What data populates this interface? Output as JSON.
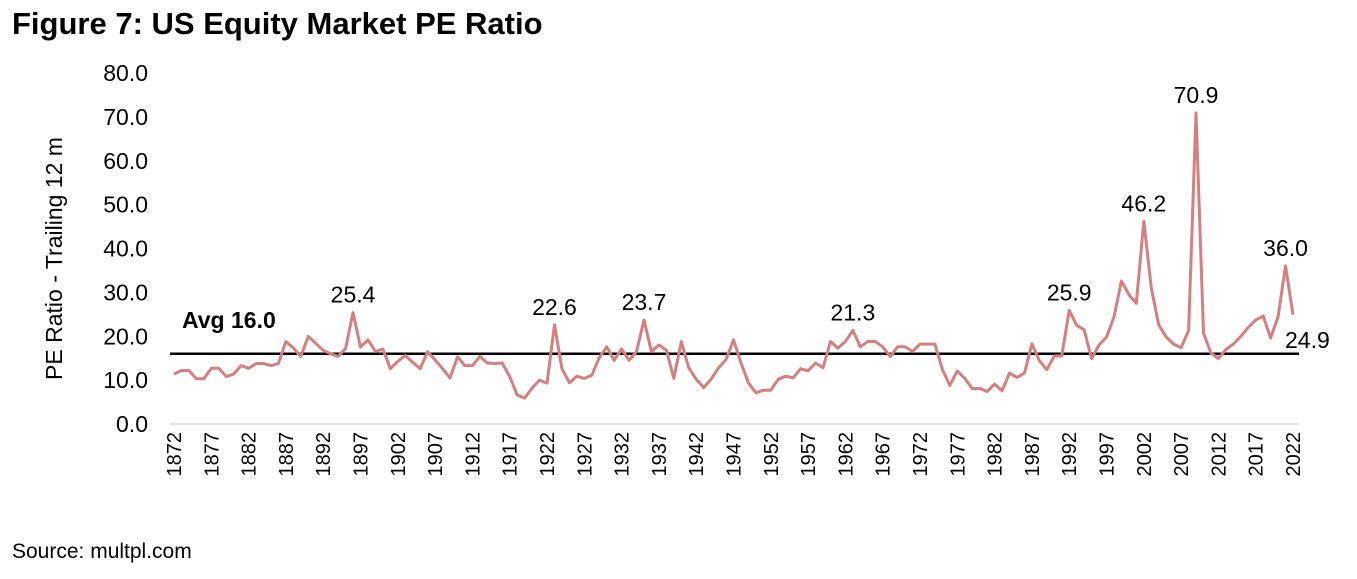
{
  "chart_data": {
    "type": "line",
    "title": "Figure 7: US Equity Market PE Ratio",
    "ylabel": "PE Ratio - Trailing 12 m",
    "xlabel": "",
    "source": "Source: multpl.com",
    "ylim": [
      0,
      80
    ],
    "yticks": [
      "0.0",
      "10.0",
      "20.0",
      "30.0",
      "40.0",
      "50.0",
      "60.0",
      "70.0",
      "80.0"
    ],
    "x_start": 1872,
    "x_end": 2022,
    "xtick_step": 5,
    "line_color": "#d67f7f",
    "average": {
      "value": 16.0,
      "label": "Avg 16.0"
    },
    "series": [
      {
        "name": "PE Ratio",
        "values": [
          11.4,
          12.2,
          12.2,
          10.3,
          10.3,
          12.7,
          12.7,
          10.8,
          11.4,
          13.3,
          12.7,
          13.8,
          13.8,
          13.3,
          13.8,
          18.8,
          17.3,
          15.4,
          20.0,
          18.4,
          16.8,
          16.0,
          15.4,
          17.2,
          25.4,
          17.5,
          19.2,
          16.5,
          17.1,
          12.6,
          14.3,
          15.6,
          14.1,
          12.6,
          16.5,
          14.6,
          12.6,
          10.5,
          15.3,
          13.3,
          13.3,
          15.4,
          13.9,
          13.8,
          13.9,
          10.8,
          6.6,
          5.9,
          8.2,
          10.0,
          9.3,
          22.6,
          12.6,
          9.4,
          10.9,
          10.4,
          11.1,
          15.1,
          17.6,
          14.5,
          17.1,
          14.5,
          16.5,
          23.7,
          16.5,
          18.0,
          16.8,
          10.4,
          18.8,
          12.8,
          10.2,
          8.3,
          10.2,
          12.8,
          14.7,
          19.2,
          13.9,
          9.4,
          7.1,
          7.7,
          7.7,
          10.2,
          10.9,
          10.5,
          12.6,
          12.1,
          13.9,
          12.8,
          18.8,
          17.3,
          18.8,
          21.3,
          17.6,
          18.8,
          18.8,
          17.6,
          15.4,
          17.6,
          17.6,
          16.5,
          18.2,
          18.2,
          18.2,
          12.4,
          8.8,
          12.1,
          10.4,
          8.1,
          8.1,
          7.4,
          9.1,
          7.6,
          11.6,
          10.6,
          11.6,
          18.3,
          14.4,
          12.4,
          15.5,
          15.5,
          25.9,
          22.5,
          21.5,
          14.9,
          18.0,
          19.8,
          24.4,
          32.6,
          29.5,
          27.5,
          46.2,
          31.0,
          22.6,
          19.8,
          18.2,
          17.4,
          21.3,
          70.9,
          20.7,
          16.2,
          14.9,
          17.0,
          18.2,
          20.0,
          22.0,
          23.7,
          24.6,
          19.6,
          24.5,
          36.0,
          24.9
        ]
      }
    ],
    "annotations": [
      {
        "year": 1896,
        "label": "25.4"
      },
      {
        "year": 1923,
        "label": "22.6"
      },
      {
        "year": 1935,
        "label": "23.7"
      },
      {
        "year": 1963,
        "label": "21.3"
      },
      {
        "year": 1992,
        "label": "25.9"
      },
      {
        "year": 2002,
        "label": "46.2"
      },
      {
        "year": 2009,
        "label": "70.9"
      },
      {
        "year": 2021,
        "label": "36.0"
      },
      {
        "year": 2022,
        "label": "24.9",
        "position": "below-right"
      }
    ]
  }
}
